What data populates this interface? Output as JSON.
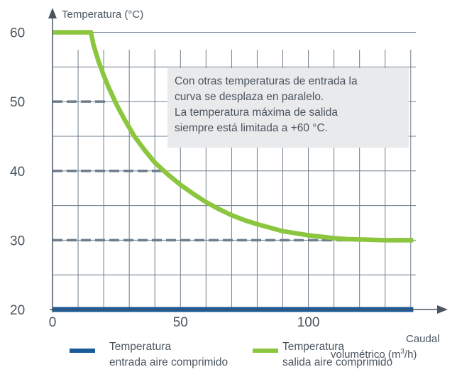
{
  "chart_data": {
    "type": "line",
    "y_axis_title": "Temperatura (°C)",
    "x_axis_title_line1": "Caudal",
    "x_axis_title_line2_prefix": "volumétrico (m",
    "x_axis_title_sup": "3",
    "x_axis_title_line2_suffix": "/h)",
    "xlim": [
      0,
      142
    ],
    "ylim": [
      20,
      62
    ],
    "x_ticks": [
      0,
      50,
      100
    ],
    "y_ticks": [
      20,
      30,
      40,
      50,
      60
    ],
    "grid": true,
    "series": [
      {
        "name": "Temperatura salida aire comprimido",
        "color": "#8cc63f",
        "x": [
          0,
          15,
          16,
          18,
          20,
          22,
          25,
          28,
          32,
          36,
          40,
          45,
          50,
          55,
          60,
          65,
          70,
          75,
          80,
          85,
          90,
          95,
          100,
          105,
          110,
          115,
          120,
          125,
          130,
          135,
          141
        ],
        "y": [
          60,
          60,
          58.2,
          55.8,
          53.8,
          52.0,
          49.6,
          47.5,
          45.0,
          43.0,
          41.2,
          39.5,
          38.0,
          36.7,
          35.5,
          34.5,
          33.6,
          32.9,
          32.3,
          31.8,
          31.3,
          31.0,
          30.7,
          30.5,
          30.3,
          30.15,
          30.1,
          30.05,
          30.0,
          30.0,
          30.0
        ]
      },
      {
        "name": "Temperatura entrada aire comprimido",
        "color": "#1a5a99",
        "x": [
          0,
          141
        ],
        "y": [
          20,
          20
        ]
      }
    ],
    "dashed_lines": [
      {
        "y": 50,
        "x_end": 22,
        "color": "#6e7d8c"
      },
      {
        "y": 40,
        "x_end": 43,
        "color": "#6e7d8c"
      },
      {
        "y": 30,
        "x_end": 117,
        "color": "#6e7d8c"
      }
    ],
    "annotation": [
      "Con otras temperaturas de entrada la",
      "curva se desplaza en paralelo.",
      "La temperatura máxima de salida",
      "siempre está limitada a +60 °C."
    ],
    "legend": [
      {
        "line1": "Temperatura",
        "line2": "entrada aire comprimido",
        "color": "#1a5a99"
      },
      {
        "line1": "Temperatura",
        "line2": "salida aire comprimido",
        "color": "#8cc63f"
      }
    ]
  }
}
